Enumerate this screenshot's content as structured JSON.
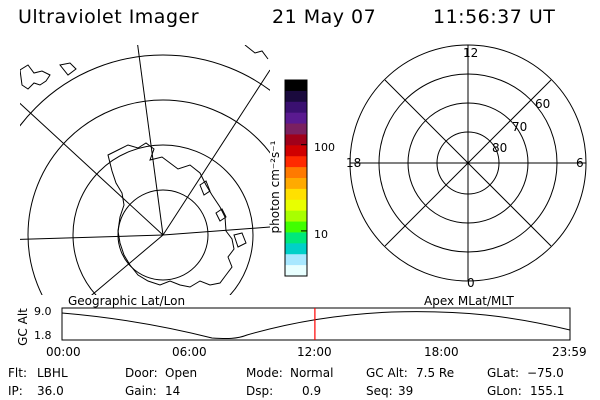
{
  "header": {
    "instrument": "Ultraviolet Imager",
    "date": "21 May 07",
    "time": "11:56:37 UT"
  },
  "colorbar": {
    "unit_label": "photon cm⁻²s⁻¹",
    "tick_labels": [
      "100",
      "10"
    ],
    "colors": [
      "#000000",
      "#1a0a3d",
      "#3a1070",
      "#5a1a90",
      "#7a2060",
      "#a0001a",
      "#d00000",
      "#ff2a00",
      "#ff7a00",
      "#ffaa00",
      "#ffe000",
      "#e8ff00",
      "#a8ff00",
      "#40ff00",
      "#00e87a",
      "#00d0c8",
      "#a8e8ff",
      "#e8ffff"
    ]
  },
  "left_map": {
    "caption": "Geographic Lat/Lon"
  },
  "right_map": {
    "caption": "Apex MLat/MLT",
    "mlt_labels": {
      "top": "12",
      "bottom": "0",
      "left": "18",
      "right": "6"
    },
    "mlat_labels": [
      "60",
      "70",
      "80"
    ]
  },
  "timeline": {
    "ylabel": "GC Alt",
    "y_ticks": [
      "9.0",
      "1.8"
    ],
    "x_ticks": [
      "00:00",
      "06:00",
      "12:00",
      "18:00",
      "23:59"
    ],
    "current_time_fraction": 0.4979,
    "marker_color": "#ff0000"
  },
  "status": {
    "flt_label": "Flt:",
    "flt_value": "LBHL",
    "ip_label": "IP:",
    "ip_value": "36.0",
    "door_label": "Door:",
    "door_value": "Open",
    "gain_label": "Gain:",
    "gain_value": "14",
    "mode_label": "Mode:",
    "mode_value": "Normal",
    "dsp_label": "Dsp:",
    "dsp_value": "0.9",
    "gcalt_label": "GC Alt:",
    "gcalt_value": "7.5 Re",
    "seq_label": "Seq:",
    "seq_value": "39",
    "glat_label": "GLat:",
    "glat_value": "−75.0",
    "glon_label": "GLon:",
    "glon_value": "155.1"
  }
}
